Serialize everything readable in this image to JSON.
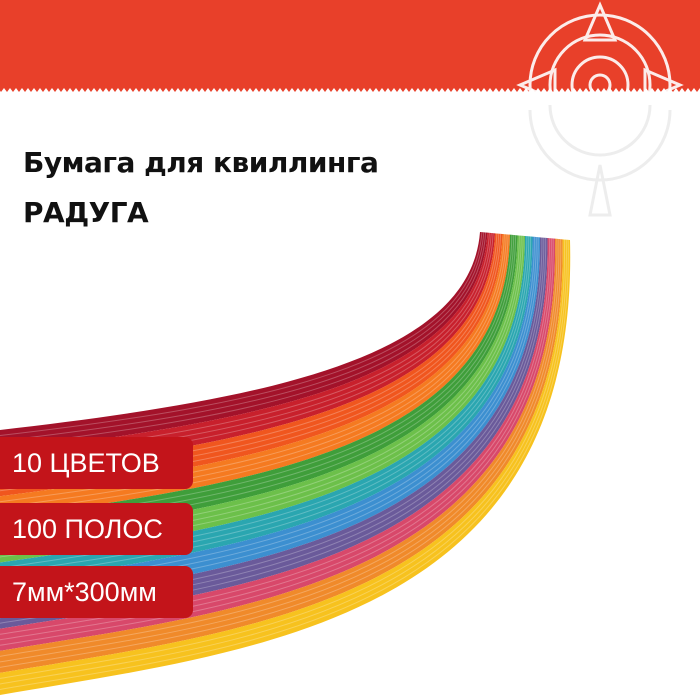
{
  "product": {
    "title_line1": "Бумага для квиллинга",
    "title_line2": "РАДУГА"
  },
  "badges": [
    {
      "label": "10 ЦВЕТОВ"
    },
    {
      "label": "100 ПОЛОС"
    },
    {
      "label": "7мм*300мм"
    }
  ],
  "colors": {
    "banner": "#e8402a",
    "badge": "#c3141a",
    "strands": [
      "#a3122a",
      "#c8202c",
      "#f0561e",
      "#f57a20",
      "#3f9e3a",
      "#6cc04a",
      "#2aa6b0",
      "#3c8fd0",
      "#6a5a9a",
      "#d8486a",
      "#f08a2a",
      "#f7c21e"
    ]
  },
  "icons": {
    "logo": "sun-ornament-icon"
  }
}
